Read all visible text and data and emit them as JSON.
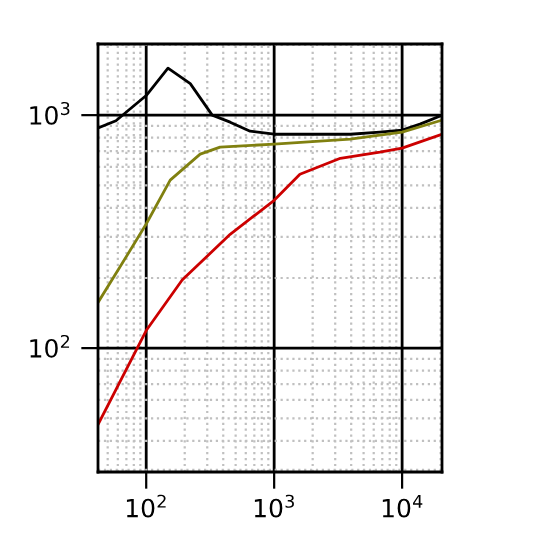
{
  "chart_data": {
    "type": "line",
    "log": "xy",
    "grid": true,
    "marker": "none",
    "line_style": "solid",
    "xlim": [
      42,
      20500
    ],
    "ylim": [
      29.4,
      2020
    ],
    "xticks": [
      {
        "value": 100,
        "label": "10$^{2}$"
      },
      {
        "value": 1000,
        "label": "10$^{3}$"
      },
      {
        "value": 10000,
        "label": "10$^{4}$"
      }
    ],
    "yticks": [
      {
        "value": 100,
        "label": "10$^{2}$"
      },
      {
        "value": 1000,
        "label": "10$^{3}$"
      }
    ],
    "series": [
      {
        "color": "#000000",
        "x": [
          42,
          58,
          100,
          148,
          221,
          328,
          453,
          649,
          1000,
          3930,
          6700,
          10000,
          13800,
          20500
        ],
        "values": [
          880,
          946,
          1214,
          1590,
          1366,
          1000,
          933,
          853,
          828,
          828,
          845,
          862,
          915,
          1000
        ]
      },
      {
        "color": "#808010",
        "x": [
          42,
          63,
          100,
          154,
          264,
          378,
          1000,
          3930,
          10000,
          20500
        ],
        "values": [
          157,
          225,
          341,
          526,
          680,
          729,
          751,
          789,
          845,
          952
        ]
      },
      {
        "color": "#cc0000",
        "x": [
          42,
          100,
          191,
          453,
          1000,
          1590,
          3290,
          6700,
          10000,
          20500
        ],
        "values": [
          47,
          119,
          196,
          308,
          431,
          558,
          653,
          694,
          722,
          828
        ]
      }
    ]
  }
}
